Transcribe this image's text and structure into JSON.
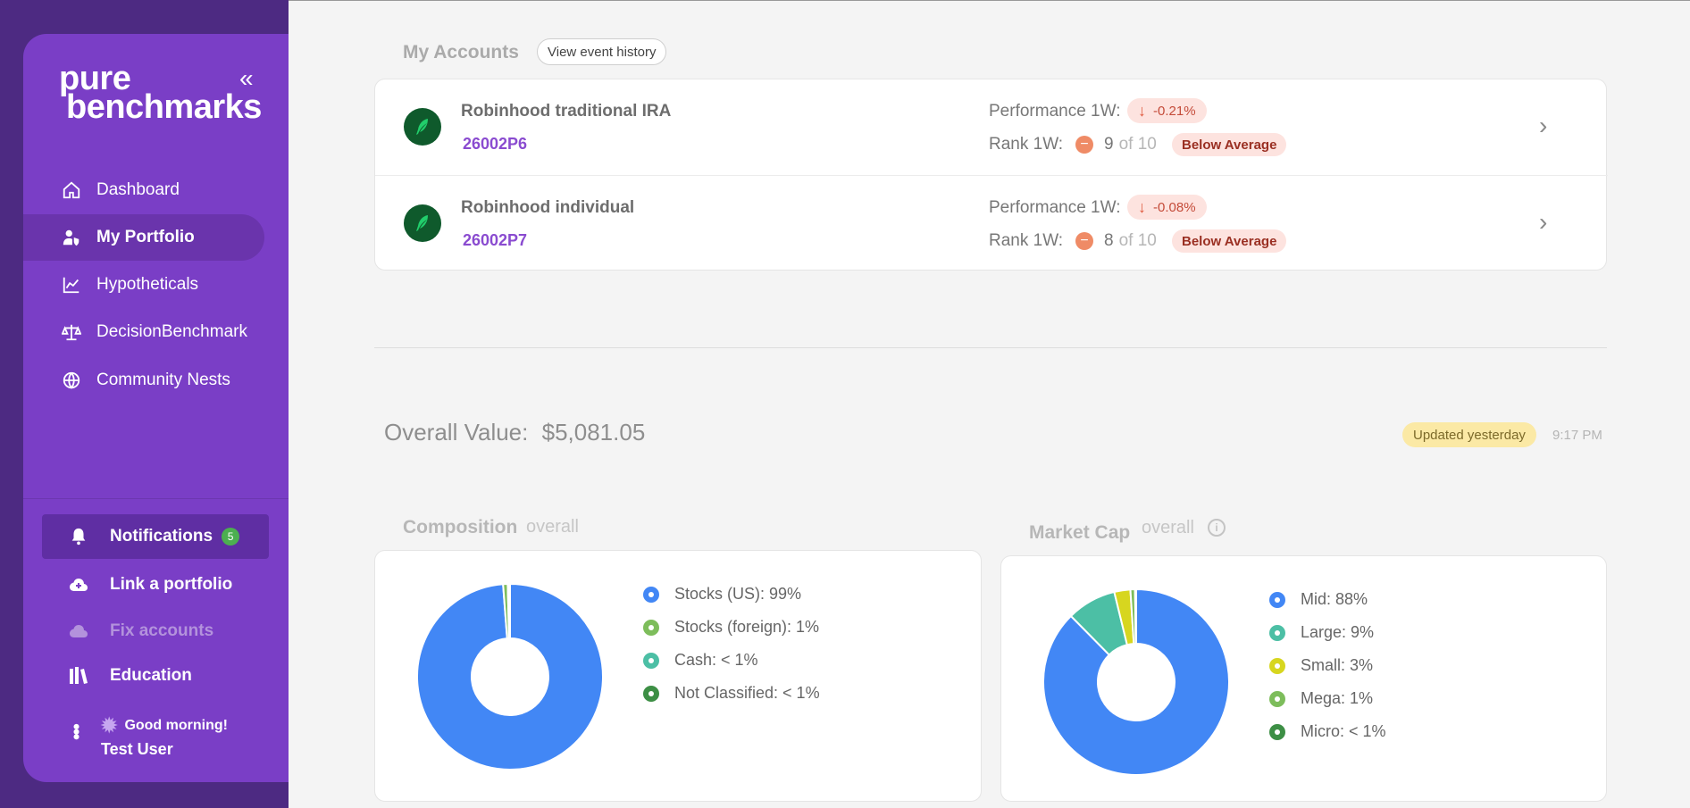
{
  "sidebar": {
    "logo_line1": "pure",
    "logo_line2": "benchmarks",
    "collapse_glyph": "«",
    "nav": [
      {
        "label": "Dashboard",
        "icon": "home-icon"
      },
      {
        "label": "My Portfolio",
        "icon": "user-shield-icon"
      },
      {
        "label": "Hypotheticals",
        "icon": "line-chart-icon"
      },
      {
        "label": "DecisionBenchmark",
        "icon": "balance-scale-icon"
      },
      {
        "label": "Community Nests",
        "icon": "globe-icon"
      }
    ],
    "notifications_label": "Notifications",
    "notifications_count": "5",
    "link_portfolio_label": "Link a portfolio",
    "fix_accounts_label": "Fix accounts",
    "education_label": "Education",
    "greeting": "Good morning!",
    "username": "Test User"
  },
  "accounts": {
    "title": "My Accounts",
    "history_button": "View event history",
    "rows": [
      {
        "name": "Robinhood traditional IRA",
        "id": "26002P6",
        "perf_label": "Performance 1W:",
        "perf_value": "-0.21%",
        "rank_label": "Rank 1W:",
        "rank": "9",
        "rank_of": "of 10",
        "rank_status": "Below Average"
      },
      {
        "name": "Robinhood individual",
        "id": "26002P7",
        "perf_label": "Performance 1W:",
        "perf_value": "-0.08%",
        "rank_label": "Rank 1W:",
        "rank": "8",
        "rank_of": "of 10",
        "rank_status": "Below Average"
      }
    ]
  },
  "overall": {
    "label": "Overall Value:",
    "value": "$5,081.05",
    "updated": "Updated yesterday",
    "time": "9:17 PM"
  },
  "colors": {
    "brand": "#7a3ec6",
    "blue": "#4287f5",
    "light_green": "#7dbd5b",
    "teal": "#4cbfa5",
    "dark_green": "#3d8f45",
    "yellow": "#d7d61f"
  },
  "chart_data": [
    {
      "type": "pie",
      "title": "Composition",
      "subtitle": "overall",
      "slices": [
        {
          "label": "Stocks (US): 99%",
          "value": 98.8,
          "color": "#4287f5"
        },
        {
          "label": "Stocks (foreign): 1%",
          "value": 0.8,
          "color": "#7dbd5b"
        },
        {
          "label": "Cash: < 1%",
          "value": 0.2,
          "color": "#4cbfa5"
        },
        {
          "label": "Not Classified: < 1%",
          "value": 0.2,
          "color": "#3d8f45"
        }
      ]
    },
    {
      "type": "pie",
      "title": "Market Cap",
      "subtitle": "overall",
      "slices": [
        {
          "label": "Mid: 88%",
          "value": 87.6,
          "color": "#4287f5"
        },
        {
          "label": "Large: 9%",
          "value": 8.6,
          "color": "#4cbfa5"
        },
        {
          "label": "Small: 3%",
          "value": 2.8,
          "color": "#d7d61f"
        },
        {
          "label": "Mega: 1%",
          "value": 0.8,
          "color": "#7dbd5b"
        },
        {
          "label": "Micro: < 1%",
          "value": 0.2,
          "color": "#3d8f45"
        }
      ]
    }
  ]
}
